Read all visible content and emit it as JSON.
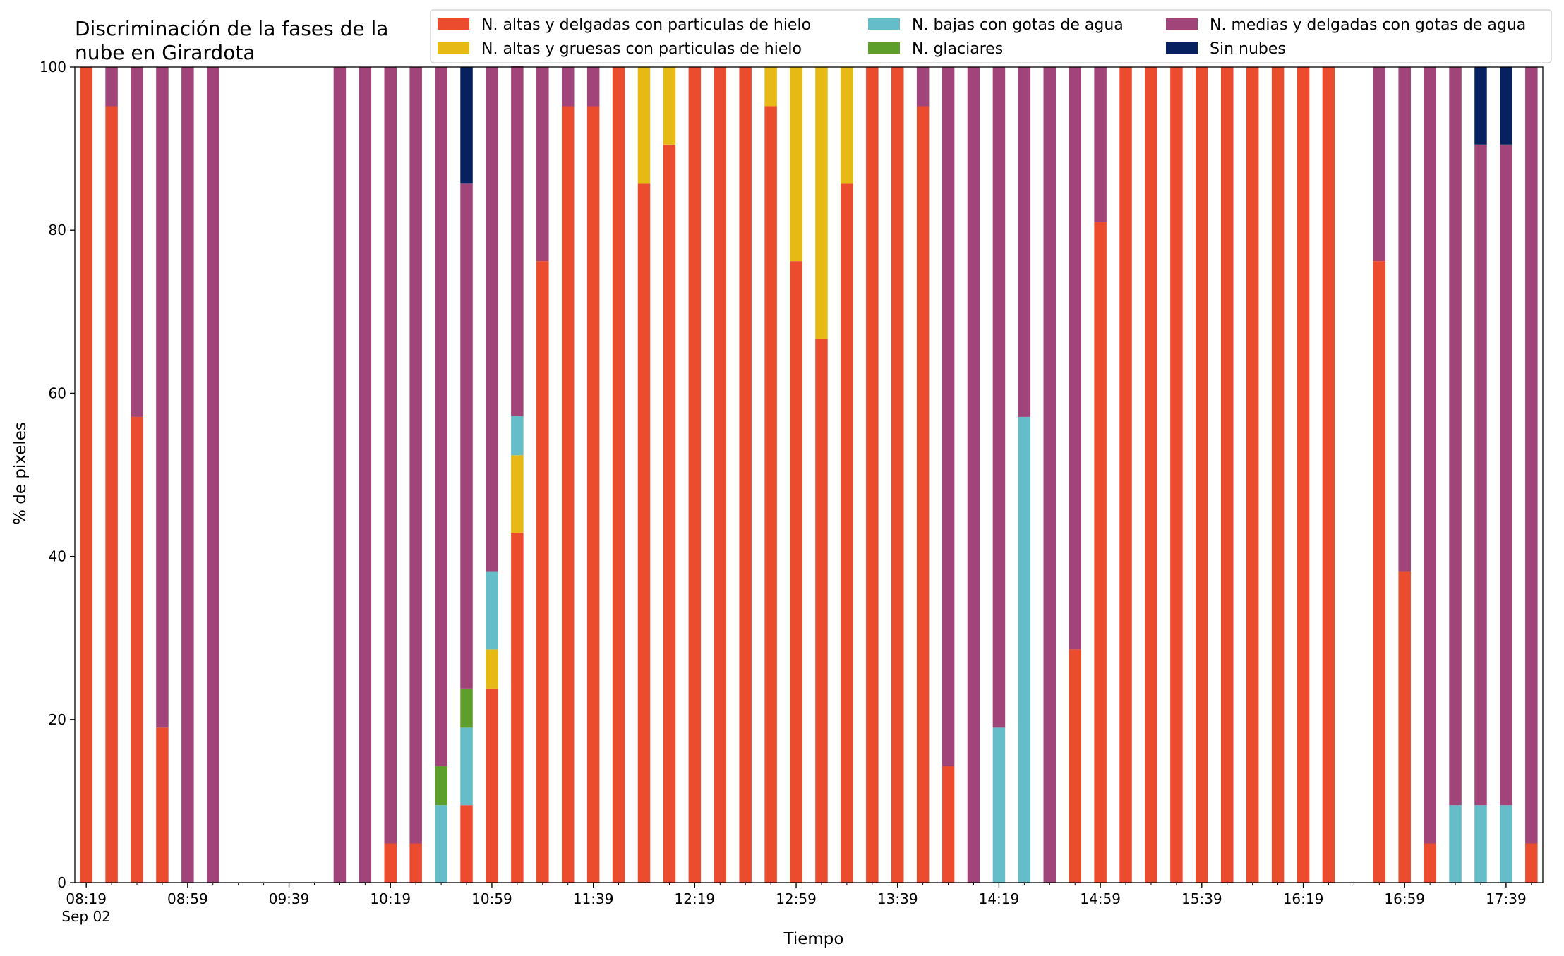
{
  "chart_data": {
    "type": "bar",
    "stacked": true,
    "title": "Discriminación de la fases de la\nnube en Girardota",
    "xlabel": "Tiempo",
    "ylabel": "% de pixeles",
    "ylim": [
      0,
      100
    ],
    "yticks": [
      0,
      20,
      40,
      60,
      80,
      100
    ],
    "xticks": [
      "08:19",
      "08:59",
      "09:39",
      "10:19",
      "10:59",
      "11:39",
      "12:19",
      "12:59",
      "13:39",
      "14:19",
      "14:59",
      "15:39",
      "16:19",
      "16:59",
      "17:39"
    ],
    "date_label": "Sep 02",
    "x_start": "08:19",
    "x_interval_minutes": 10,
    "grid": false,
    "legend_position": "top-right",
    "series": [
      {
        "name": "N. altas y delgadas con particulas de hielo",
        "color": "#eb4c2e",
        "values": [
          100,
          95.2,
          57.1,
          19,
          0,
          0,
          null,
          null,
          null,
          null,
          0,
          0,
          4.8,
          4.8,
          0,
          9.5,
          23.8,
          42.9,
          76.2,
          95.2,
          95.2,
          100,
          85.7,
          90.5,
          100,
          100,
          100,
          95.2,
          76.2,
          66.7,
          85.7,
          100,
          100,
          95.2,
          14.3,
          0,
          0,
          0,
          0,
          28.6,
          81,
          100,
          100,
          100,
          100,
          100,
          100,
          100,
          100,
          100,
          null,
          76.2,
          38.1,
          4.8,
          0,
          0,
          0,
          4.8
        ]
      },
      {
        "name": "N. altas y gruesas con particulas de hielo",
        "color": "#e6b915",
        "values": [
          0,
          0,
          0,
          0,
          0,
          0,
          null,
          null,
          null,
          null,
          0,
          0,
          0,
          0,
          0,
          0,
          4.8,
          9.5,
          0,
          0,
          0,
          0,
          14.3,
          9.5,
          0,
          0,
          0,
          4.8,
          23.8,
          33.3,
          14.3,
          0,
          0,
          0,
          0,
          0,
          0,
          0,
          0,
          0,
          0,
          0,
          0,
          0,
          0,
          0,
          0,
          0,
          0,
          0,
          null,
          0,
          0,
          0,
          0,
          0,
          0,
          0
        ]
      },
      {
        "name": "N. bajas con gotas de agua",
        "color": "#64bdc9",
        "values": [
          0,
          0,
          0,
          0,
          0,
          0,
          null,
          null,
          null,
          null,
          0,
          0,
          0,
          0,
          9.5,
          9.5,
          9.5,
          4.8,
          0,
          0,
          0,
          0,
          0,
          0,
          0,
          0,
          0,
          0,
          0,
          0,
          0,
          0,
          0,
          0,
          0,
          0,
          19,
          57.1,
          0,
          0,
          0,
          0,
          0,
          0,
          0,
          0,
          0,
          0,
          0,
          0,
          null,
          0,
          0,
          0,
          9.5,
          9.5,
          9.5,
          0
        ]
      },
      {
        "name": "N. glaciares",
        "color": "#5e9f2b",
        "values": [
          0,
          0,
          0,
          0,
          0,
          0,
          null,
          null,
          null,
          null,
          0,
          0,
          0,
          0,
          4.8,
          4.8,
          0,
          0,
          0,
          0,
          0,
          0,
          0,
          0,
          0,
          0,
          0,
          0,
          0,
          0,
          0,
          0,
          0,
          0,
          0,
          0,
          0,
          0,
          0,
          0,
          0,
          0,
          0,
          0,
          0,
          0,
          0,
          0,
          0,
          0,
          null,
          0,
          0,
          0,
          0,
          0,
          0,
          0
        ]
      },
      {
        "name": "N. medias y delgadas con gotas de agua",
        "color": "#a1447a",
        "values": [
          0,
          4.8,
          42.9,
          81,
          100,
          100,
          null,
          null,
          null,
          null,
          100,
          100,
          95.2,
          95.2,
          85.7,
          61.9,
          61.9,
          42.9,
          23.8,
          4.8,
          4.8,
          0,
          0,
          0,
          0,
          0,
          0,
          0,
          0,
          0,
          0,
          0,
          0,
          4.8,
          85.7,
          100,
          81,
          42.9,
          100,
          71.4,
          19,
          0,
          0,
          0,
          0,
          0,
          0,
          0,
          0,
          0,
          null,
          23.8,
          61.9,
          95.2,
          90.5,
          81,
          81,
          95.2
        ]
      },
      {
        "name": "Sin nubes",
        "color": "#062060",
        "values": [
          0,
          0,
          0,
          0,
          0,
          0,
          null,
          null,
          null,
          null,
          0,
          0,
          0,
          0,
          0,
          14.3,
          0,
          0,
          0,
          0,
          0,
          0,
          0,
          0,
          0,
          0,
          0,
          0,
          0,
          0,
          0,
          0,
          0,
          0,
          0,
          0,
          0,
          0,
          0,
          0,
          0,
          0,
          0,
          0,
          0,
          0,
          0,
          0,
          0,
          0,
          null,
          0,
          0,
          0,
          0,
          9.5,
          9.5,
          0
        ]
      }
    ]
  }
}
